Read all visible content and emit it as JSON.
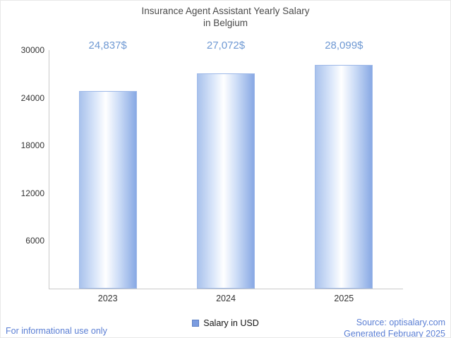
{
  "title": {
    "line1": "Insurance Agent Assistant Yearly Salary",
    "line2": "in Belgium"
  },
  "chart_data": {
    "type": "bar",
    "title": "Insurance Agent Assistant Yearly Salary in Belgium",
    "categories": [
      "2023",
      "2024",
      "2025"
    ],
    "values": [
      24837,
      27072,
      28099
    ],
    "value_labels": [
      "24,837$",
      "27,072$",
      "28,099$"
    ],
    "series_name": "Salary in USD",
    "xlabel": "",
    "ylabel": "",
    "ylim": [
      0,
      30000
    ],
    "yticks": [
      6000,
      12000,
      18000,
      24000,
      30000
    ],
    "ytick_labels": [
      "6000",
      "12000",
      "18000",
      "24000",
      "30000"
    ],
    "grid": false,
    "legend_position": "bottom",
    "colors": {
      "bar_edge": "#9db8e8",
      "bar_gradient_left": "#a9c2ec",
      "bar_gradient_mid": "#ffffff",
      "bar_gradient_right": "#88a9e4",
      "value_label": "#6f99d3",
      "axis": "#c9c9c9",
      "tick_text": "#333333",
      "footer_text": "#5b7fd4"
    }
  },
  "legend": {
    "label": "Salary in USD"
  },
  "footer": {
    "disclaimer": "For informational use only",
    "source": "Source: optisalary.com",
    "generated": "Generated February 2025"
  }
}
